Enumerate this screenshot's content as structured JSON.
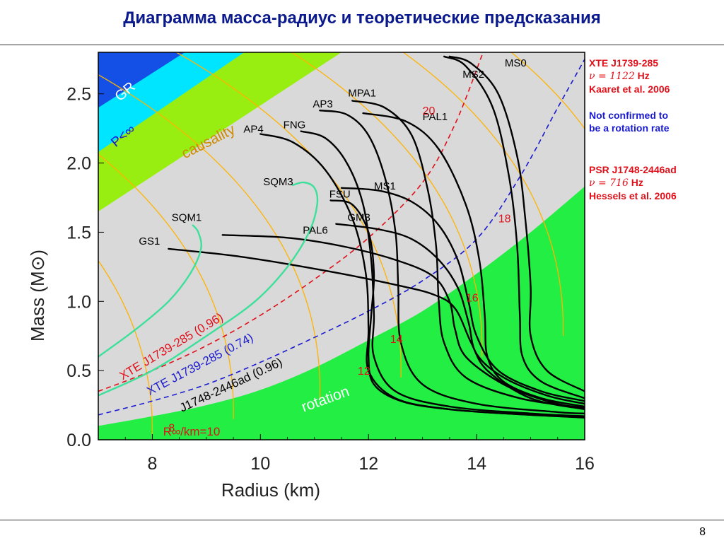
{
  "slide": {
    "title": "Диаграмма масса-радиус и теоретические предсказания",
    "page_number": "8"
  },
  "side_notes": {
    "xte": {
      "line1": "XTE J1739-285",
      "nu_prefix": "ν = 1122",
      "nu_unit": "Hz",
      "line3": "Kaaret et al. 2006"
    },
    "not_confirmed": {
      "line1": "Not confirmed to",
      "line2": "be a rotation rate"
    },
    "psr": {
      "line1": "PSR J1748-2446ad",
      "nu_prefix": "ν = 716",
      "nu_unit": "Hz",
      "line3": "Hessels et al. 2006"
    }
  },
  "colors": {
    "gr": "#1450e6",
    "pinf": "#00e5ff",
    "causality": "#99ee11",
    "rotation": "#22ee44",
    "allowed": "#d9d9d9",
    "iso_radius": "#ffb300",
    "sqm": "#3de09a",
    "eos": "#000000",
    "xte_limit": "#e0101a",
    "xte_074": "#1a1ad0",
    "text_red": "#e0101a",
    "text_blue": "#1a1ad0"
  },
  "chart_data": {
    "type": "line",
    "xlabel": "Radius (km)",
    "ylabel": "Mass (M⊙)",
    "xlim": [
      7,
      16
    ],
    "ylim": [
      0,
      2.8
    ],
    "xticks": [
      8,
      10,
      12,
      14,
      16
    ],
    "yticks": [
      "0.0",
      "0.5",
      "1.0",
      "1.5",
      "2.0",
      "2.5"
    ],
    "region_labels": {
      "gr": "GR",
      "pinf": "P<∞",
      "causality": "causality",
      "rotation": "rotation"
    },
    "limit_curves": [
      {
        "name": "XTE J1739-285 (0.96)",
        "color": "red",
        "points": [
          [
            7,
            0.35
          ],
          [
            8,
            0.5
          ],
          [
            9,
            0.68
          ],
          [
            10,
            0.9
          ],
          [
            11,
            1.16
          ],
          [
            12,
            1.46
          ],
          [
            13,
            1.86
          ],
          [
            13.6,
            2.28
          ],
          [
            14.1,
            2.78
          ]
        ]
      },
      {
        "name": "XTE J1739-285 (0.74)",
        "color": "blue",
        "points": [
          [
            7,
            0.18
          ],
          [
            8,
            0.28
          ],
          [
            9,
            0.4
          ],
          [
            10,
            0.56
          ],
          [
            11,
            0.74
          ],
          [
            12,
            0.93
          ],
          [
            13,
            1.15
          ],
          [
            14,
            1.45
          ],
          [
            14.8,
            1.9
          ],
          [
            15.5,
            2.4
          ],
          [
            16,
            2.75
          ]
        ]
      },
      {
        "name": "J1748-2446ad (0.96)",
        "color": "none",
        "points": [
          [
            7,
            0.1
          ],
          [
            8,
            0.17
          ],
          [
            9,
            0.25
          ],
          [
            10,
            0.36
          ],
          [
            11,
            0.52
          ],
          [
            12,
            0.72
          ],
          [
            13,
            0.93
          ],
          [
            14,
            1.2
          ],
          [
            15,
            1.5
          ],
          [
            16,
            1.83
          ]
        ]
      }
    ],
    "iso_radius_labels": [
      {
        "label": "8",
        "x": 8.3,
        "y": 0.06
      },
      {
        "label": "12",
        "x": 11.8,
        "y": 0.47
      },
      {
        "label": "14",
        "x": 12.4,
        "y": 0.7
      },
      {
        "label": "16",
        "x": 13.8,
        "y": 1.0
      },
      {
        "label": "18",
        "x": 14.4,
        "y": 1.57
      },
      {
        "label": "20",
        "x": 13.0,
        "y": 2.35
      }
    ],
    "iso_radius_legend": "R∞/km=10",
    "series": [
      {
        "name": "GS1",
        "color": "black",
        "points": [
          [
            8.3,
            1.38
          ],
          [
            9.5,
            1.33
          ],
          [
            10.5,
            1.27
          ],
          [
            11.5,
            1.2
          ],
          [
            12.5,
            1.12
          ],
          [
            13.2,
            1.05
          ],
          [
            13.6,
            0.95
          ],
          [
            13.9,
            0.7
          ],
          [
            14.2,
            0.5
          ],
          [
            15,
            0.3
          ],
          [
            16,
            0.22
          ]
        ]
      },
      {
        "name": "PAL6",
        "color": "black",
        "points": [
          [
            9.3,
            1.48
          ],
          [
            10.5,
            1.46
          ],
          [
            11.5,
            1.4
          ],
          [
            12.5,
            1.3
          ],
          [
            13.2,
            1.18
          ],
          [
            13.5,
            1.0
          ],
          [
            13.6,
            0.8
          ],
          [
            13.8,
            0.6
          ],
          [
            14.5,
            0.4
          ],
          [
            15.3,
            0.28
          ],
          [
            16,
            0.22
          ]
        ]
      },
      {
        "name": "AP4",
        "color": "black",
        "points": [
          [
            10,
            2.21
          ],
          [
            10.6,
            2.15
          ],
          [
            11.2,
            1.95
          ],
          [
            11.7,
            1.6
          ],
          [
            11.95,
            1.2
          ],
          [
            12,
            0.8
          ],
          [
            12,
            0.5
          ],
          [
            12.5,
            0.3
          ],
          [
            13.5,
            0.22
          ],
          [
            15,
            0.18
          ],
          [
            16,
            0.16
          ]
        ]
      },
      {
        "name": "FNG",
        "color": "black",
        "points": [
          [
            10.75,
            2.23
          ],
          [
            11.2,
            2.18
          ],
          [
            11.6,
            2.0
          ],
          [
            11.9,
            1.7
          ],
          [
            12.05,
            1.3
          ],
          [
            12.1,
            0.9
          ],
          [
            12.1,
            0.6
          ],
          [
            12.5,
            0.35
          ],
          [
            13.5,
            0.24
          ],
          [
            15,
            0.19
          ],
          [
            16,
            0.17
          ]
        ]
      },
      {
        "name": "AP3",
        "color": "black",
        "points": [
          [
            11.1,
            2.38
          ],
          [
            11.6,
            2.35
          ],
          [
            12,
            2.2
          ],
          [
            12.3,
            1.9
          ],
          [
            12.5,
            1.5
          ],
          [
            12.55,
            1.1
          ],
          [
            12.6,
            0.7
          ],
          [
            13,
            0.4
          ],
          [
            14,
            0.26
          ],
          [
            15.5,
            0.2
          ],
          [
            16,
            0.19
          ]
        ]
      },
      {
        "name": "MPA1",
        "color": "black",
        "points": [
          [
            11.7,
            2.45
          ],
          [
            12.3,
            2.4
          ],
          [
            12.8,
            2.2
          ],
          [
            13.1,
            1.8
          ],
          [
            13.25,
            1.4
          ],
          [
            13.3,
            1.0
          ],
          [
            13.4,
            0.7
          ],
          [
            13.8,
            0.45
          ],
          [
            14.8,
            0.3
          ],
          [
            16,
            0.23
          ]
        ]
      },
      {
        "name": "PAL1",
        "color": "black",
        "points": [
          [
            11.9,
            2.36
          ],
          [
            12.7,
            2.3
          ],
          [
            13.3,
            2.1
          ],
          [
            13.8,
            1.7
          ],
          [
            14.05,
            1.3
          ],
          [
            14.15,
            0.9
          ],
          [
            14.2,
            0.6
          ],
          [
            14.5,
            0.42
          ],
          [
            15.2,
            0.3
          ],
          [
            16,
            0.24
          ]
        ]
      },
      {
        "name": "MS2",
        "color": "black",
        "points": [
          [
            13.4,
            2.77
          ],
          [
            13.8,
            2.7
          ],
          [
            14.3,
            2.4
          ],
          [
            14.6,
            1.9
          ],
          [
            14.75,
            1.4
          ],
          [
            14.8,
            0.9
          ],
          [
            14.85,
            0.6
          ],
          [
            15.2,
            0.42
          ],
          [
            16,
            0.3
          ]
        ]
      },
      {
        "name": "MS0",
        "color": "black",
        "points": [
          [
            13.5,
            2.77
          ],
          [
            13.9,
            2.72
          ],
          [
            14.4,
            2.5
          ],
          [
            14.75,
            2.05
          ],
          [
            14.9,
            1.6
          ],
          [
            15,
            1.1
          ],
          [
            15,
            0.75
          ],
          [
            15.3,
            0.5
          ],
          [
            16,
            0.35
          ]
        ]
      },
      {
        "name": "MS1",
        "color": "black",
        "points": [
          [
            11.5,
            1.82
          ],
          [
            12.2,
            1.8
          ],
          [
            12.8,
            1.72
          ],
          [
            13.3,
            1.55
          ],
          [
            13.65,
            1.3
          ],
          [
            13.85,
            1.0
          ],
          [
            14,
            0.75
          ],
          [
            14.4,
            0.5
          ],
          [
            15.2,
            0.35
          ],
          [
            16,
            0.28
          ]
        ]
      },
      {
        "name": "FSU",
        "color": "black",
        "points": [
          [
            11.3,
            1.73
          ],
          [
            11.7,
            1.7
          ],
          [
            12,
            1.5
          ],
          [
            12.1,
            1.2
          ],
          [
            12.05,
            0.9
          ],
          [
            12.0,
            0.6
          ],
          [
            12.1,
            0.4
          ],
          [
            12.6,
            0.28
          ],
          [
            13.5,
            0.22
          ],
          [
            15,
            0.18
          ],
          [
            16,
            0.17
          ]
        ]
      },
      {
        "name": "GM3",
        "color": "black",
        "points": [
          [
            11.4,
            1.56
          ],
          [
            12.2,
            1.52
          ],
          [
            12.8,
            1.45
          ],
          [
            13.3,
            1.3
          ],
          [
            13.65,
            1.1
          ],
          [
            13.85,
            0.85
          ],
          [
            14,
            0.62
          ],
          [
            14.5,
            0.45
          ],
          [
            15.3,
            0.32
          ],
          [
            16,
            0.26
          ]
        ]
      },
      {
        "name": "SQM1",
        "color": "green",
        "points": [
          [
            7,
            0.6
          ],
          [
            7.7,
            0.8
          ],
          [
            8.3,
            1.0
          ],
          [
            8.7,
            1.2
          ],
          [
            8.9,
            1.38
          ],
          [
            8.85,
            1.5
          ],
          [
            8.75,
            1.55
          ]
        ]
      },
      {
        "name": "SQM3",
        "color": "green",
        "points": [
          [
            7,
            0.32
          ],
          [
            8,
            0.5
          ],
          [
            9,
            0.75
          ],
          [
            9.9,
            1.0
          ],
          [
            10.5,
            1.25
          ],
          [
            10.9,
            1.5
          ],
          [
            11.05,
            1.7
          ],
          [
            11.0,
            1.82
          ],
          [
            10.8,
            1.86
          ],
          [
            10.6,
            1.84
          ]
        ]
      }
    ]
  }
}
